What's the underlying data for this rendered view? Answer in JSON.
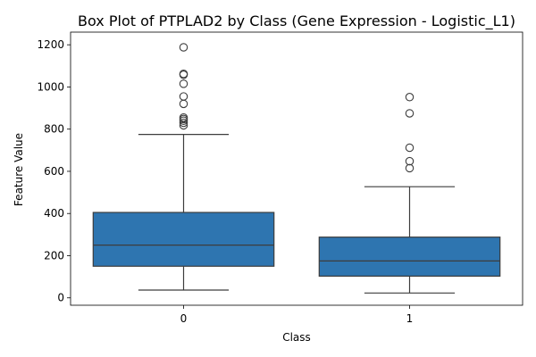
{
  "chart_data": {
    "type": "box",
    "title": "Box Plot of PTPLAD2 by Class (Gene Expression - Logistic_L1)",
    "xlabel": "Class",
    "ylabel": "Feature Value",
    "categories": [
      "0",
      "1"
    ],
    "ylim": [
      -35,
      1260
    ],
    "yticks": [
      0,
      200,
      400,
      600,
      800,
      1000,
      1200
    ],
    "box_color": "#2e75b0",
    "edge_color": "#3d3d3d",
    "boxes": [
      {
        "category": "0",
        "whisker_low": 37,
        "q1": 150,
        "median": 250,
        "q3": 405,
        "whisker_high": 775,
        "outliers": [
          818,
          830,
          840,
          848,
          855,
          920,
          955,
          1015,
          1058,
          1062,
          1188
        ]
      },
      {
        "category": "1",
        "whisker_low": 23,
        "q1": 103,
        "median": 175,
        "q3": 288,
        "whisker_high": 527,
        "outliers": [
          615,
          648,
          712,
          875,
          952
        ]
      }
    ]
  }
}
